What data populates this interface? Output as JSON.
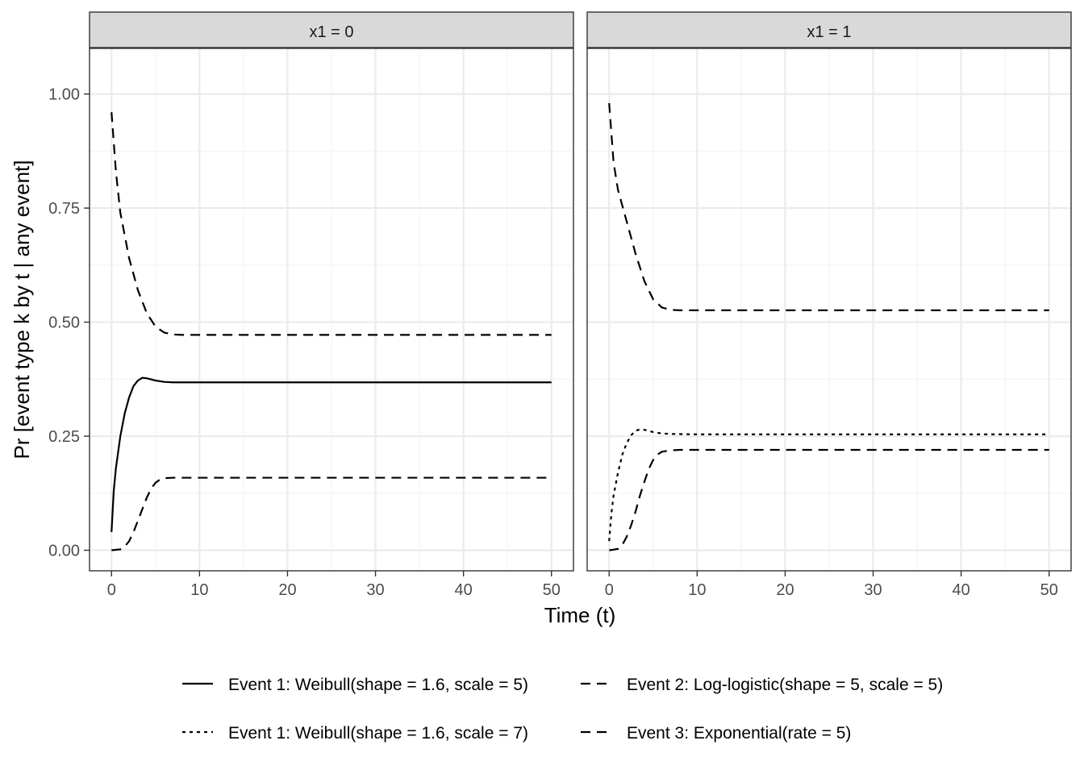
{
  "chart_data": {
    "type": "line",
    "facet_labels": [
      "x1 = 0",
      "x1 = 1"
    ],
    "xlabel": "Time (t)",
    "ylabel": "Pr [event type k by t | any event]",
    "xlim": [
      -2.5,
      52.5
    ],
    "ylim": [
      -0.045,
      1.1
    ],
    "x_ticks": [
      0,
      10,
      20,
      30,
      40,
      50
    ],
    "x_tick_labels": [
      "0",
      "10",
      "20",
      "30",
      "40",
      "50"
    ],
    "y_ticks": [
      0,
      0.25,
      0.5,
      0.75,
      1.0
    ],
    "y_tick_labels": [
      "0.00",
      "0.25",
      "0.50",
      "0.75",
      "1.00"
    ],
    "grid": true,
    "legend_position": "bottom",
    "legend": [
      {
        "label": "Event 1: Weibull(shape = 1.6, scale = 5)",
        "linetype": "solid"
      },
      {
        "label": "Event 2: Log-logistic(shape = 5, scale = 5)",
        "linetype": "dashed-long"
      },
      {
        "label": "Event 1: Weibull(shape = 1.6, scale = 7)",
        "linetype": "dotted"
      },
      {
        "label": "Event 3: Exponential(rate = 5)",
        "linetype": "dashed"
      }
    ],
    "panels": [
      {
        "label": "x1 = 0",
        "series": [
          {
            "name": "Event 1: Weibull(shape = 1.6, scale = 5)",
            "linetype": "solid",
            "x": [
              0,
              0.25,
              0.5,
              1,
              1.5,
              2,
              2.5,
              3,
              3.5,
              4,
              5,
              6,
              7,
              10,
              20,
              30,
              40,
              50
            ],
            "y": [
              0.04,
              0.13,
              0.18,
              0.25,
              0.3,
              0.335,
              0.36,
              0.372,
              0.378,
              0.377,
              0.372,
              0.369,
              0.368,
              0.368,
              0.368,
              0.368,
              0.368,
              0.368
            ]
          },
          {
            "name": "Event 2: Log-logistic(shape = 5, scale = 5)",
            "linetype": "dashed-long",
            "x": [
              0,
              0.5,
              1,
              2,
              3,
              4,
              5,
              6,
              7,
              8,
              10,
              20,
              30,
              40,
              50
            ],
            "y": [
              0.96,
              0.83,
              0.74,
              0.64,
              0.57,
              0.52,
              0.49,
              0.477,
              0.473,
              0.472,
              0.472,
              0.472,
              0.472,
              0.472,
              0.472
            ]
          },
          {
            "name": "Event 3: Exponential(rate = 5)",
            "linetype": "dashed",
            "x": [
              0,
              1,
              1.5,
              2,
              2.5,
              3,
              3.5,
              4,
              4.5,
              5,
              5.5,
              6,
              7,
              8,
              10,
              20,
              30,
              40,
              50
            ],
            "y": [
              0.0,
              0.002,
              0.008,
              0.02,
              0.04,
              0.065,
              0.09,
              0.115,
              0.135,
              0.148,
              0.155,
              0.158,
              0.159,
              0.159,
              0.159,
              0.159,
              0.159,
              0.159,
              0.159
            ]
          }
        ]
      },
      {
        "label": "x1 = 1",
        "series": [
          {
            "name": "Event 1: Weibull(shape = 1.6, scale = 7)",
            "linetype": "dotted",
            "x": [
              0,
              0.25,
              0.5,
              1,
              1.5,
              2,
              2.5,
              3,
              3.5,
              4,
              5,
              6,
              7,
              10,
              20,
              30,
              40,
              50
            ],
            "y": [
              0.02,
              0.08,
              0.12,
              0.17,
              0.21,
              0.235,
              0.252,
              0.262,
              0.265,
              0.264,
              0.259,
              0.256,
              0.255,
              0.254,
              0.254,
              0.254,
              0.254,
              0.254
            ]
          },
          {
            "name": "Event 2: Log-logistic(shape = 5, scale = 5)",
            "linetype": "dashed-long",
            "x": [
              0,
              0.5,
              1,
              2,
              3,
              4,
              5,
              6,
              7,
              8,
              10,
              20,
              30,
              40,
              50
            ],
            "y": [
              0.98,
              0.85,
              0.79,
              0.72,
              0.65,
              0.59,
              0.55,
              0.532,
              0.527,
              0.526,
              0.526,
              0.526,
              0.526,
              0.526,
              0.526
            ]
          },
          {
            "name": "Event 3: Exponential(rate = 5)",
            "linetype": "dashed",
            "x": [
              0,
              1,
              1.5,
              2,
              2.5,
              3,
              3.5,
              4,
              4.5,
              5,
              5.5,
              6,
              7,
              8,
              10,
              20,
              30,
              40,
              50
            ],
            "y": [
              0.0,
              0.003,
              0.012,
              0.03,
              0.055,
              0.085,
              0.12,
              0.15,
              0.178,
              0.198,
              0.21,
              0.216,
              0.219,
              0.22,
              0.22,
              0.22,
              0.22,
              0.22,
              0.22
            ]
          }
        ]
      }
    ],
    "colors": {
      "line": "#000000",
      "strip_fill": "#d9d9d9",
      "panel_border": "#333333",
      "grid_major": "#ebebeb",
      "grid_minor": "#f3f3f3",
      "tick_text": "#4d4d4d"
    }
  }
}
